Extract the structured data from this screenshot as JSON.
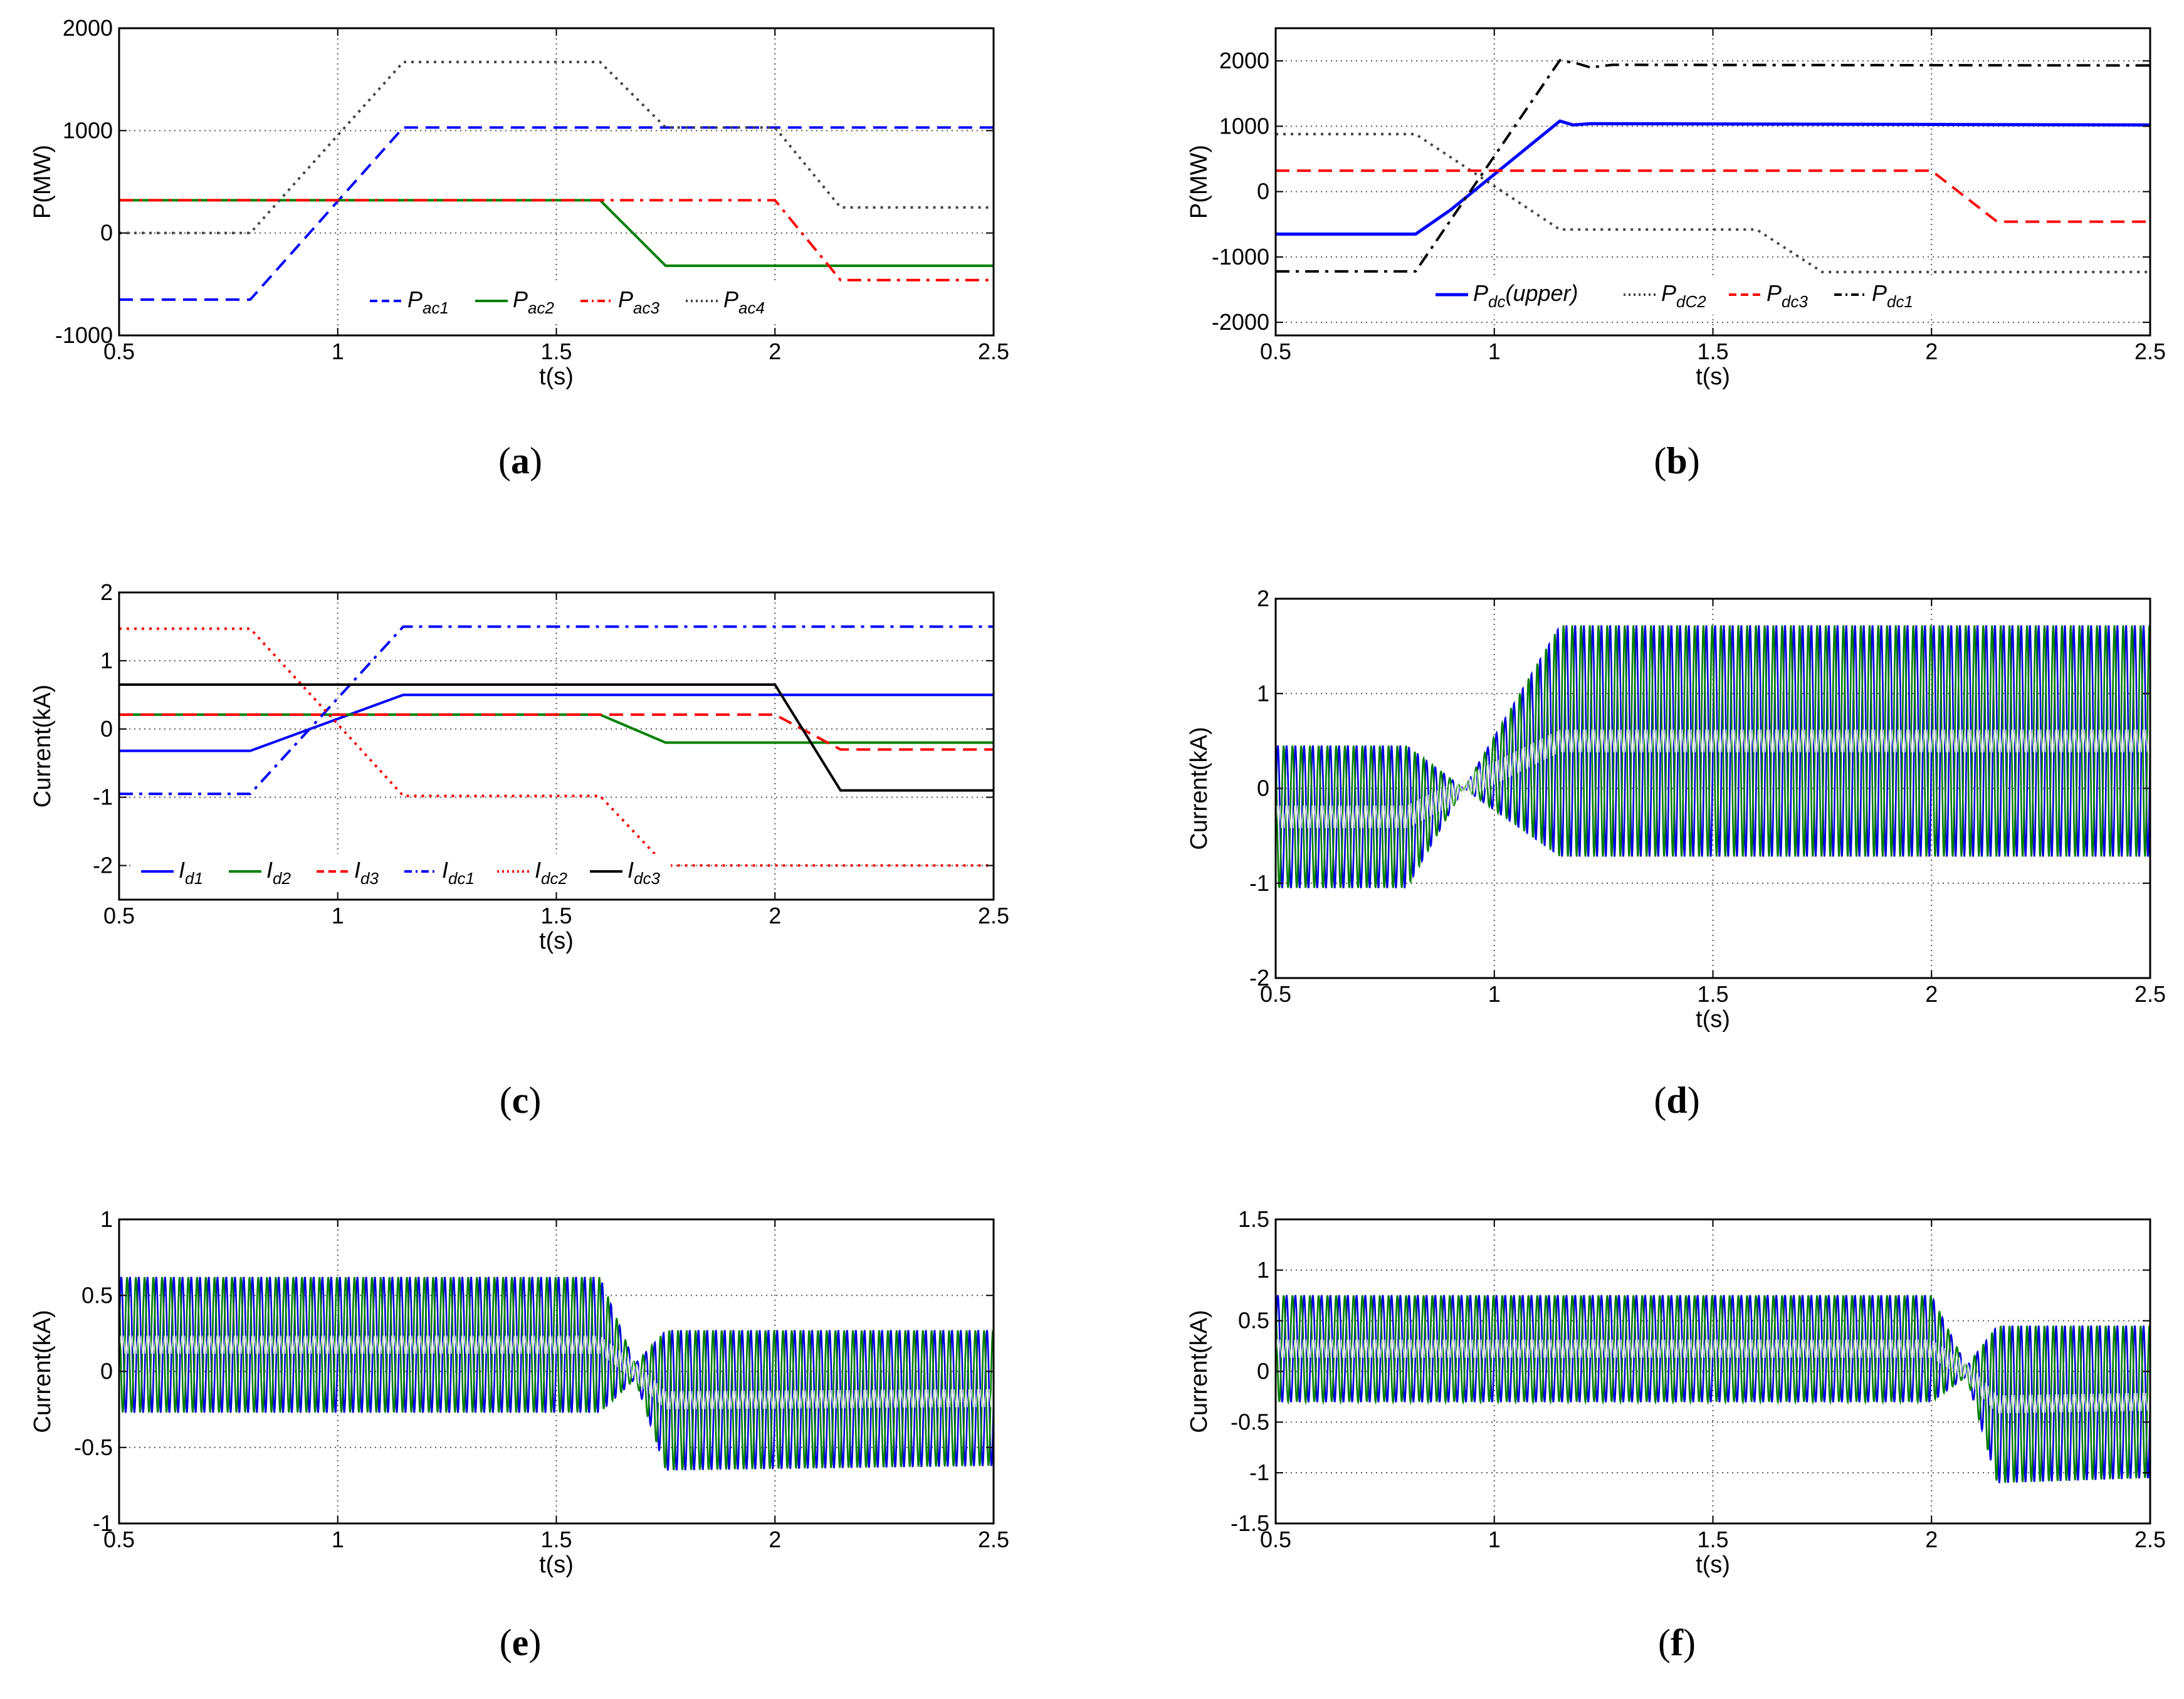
{
  "figure": {
    "panels": [
      "a",
      "b",
      "c",
      "d",
      "e",
      "f"
    ]
  },
  "chart_data": [
    {
      "id": "a",
      "caption_letter": "a",
      "type": "line",
      "xlabel": "t(s)",
      "ylabel": "P(MW)",
      "xlim": [
        0.5,
        2.5
      ],
      "ylim": [
        -1000,
        2000
      ],
      "xticks": [
        0.5,
        1,
        1.5,
        2,
        2.5
      ],
      "xtick_labels": [
        "0.5",
        "1",
        "1.5",
        "2",
        "2.5"
      ],
      "yticks": [
        -1000,
        0,
        1000,
        2000
      ],
      "ytick_labels": [
        "-1000",
        "0",
        "1000",
        "2000"
      ],
      "grid": true,
      "legend_position": "bottom-center",
      "series": [
        {
          "name": "ac1",
          "label_main": "P",
          "label_sub": "ac1",
          "color": "#0000ff",
          "dash": "long-dash",
          "x": [
            0.5,
            0.8,
            1.15,
            2.5
          ],
          "y": [
            -650,
            -650,
            1030,
            1030
          ]
        },
        {
          "name": "ac2",
          "label_main": "P",
          "label_sub": "ac2",
          "color": "#008000",
          "dash": "solid",
          "x": [
            0.5,
            1.6,
            1.75,
            2.5
          ],
          "y": [
            320,
            320,
            -320,
            -320
          ]
        },
        {
          "name": "ac3",
          "label_main": "P",
          "label_sub": "ac3",
          "color": "#ff0000",
          "dash": "dash-dot",
          "x": [
            0.5,
            2.0,
            2.15,
            2.5
          ],
          "y": [
            320,
            320,
            -460,
            -460
          ]
        },
        {
          "name": "ac4",
          "label_main": "P",
          "label_sub": "ac4",
          "color": "#444444",
          "dash": "dotted",
          "x": [
            0.5,
            0.8,
            1.15,
            1.6,
            1.75,
            2.0,
            2.15,
            2.5
          ],
          "y": [
            0,
            0,
            1670,
            1670,
            1030,
            1030,
            250,
            250
          ]
        }
      ]
    },
    {
      "id": "b",
      "caption_letter": "b",
      "type": "line",
      "xlabel": "t(s)",
      "ylabel": "P(MW)",
      "xlim": [
        0.5,
        2.5
      ],
      "ylim": [
        -2200,
        2500
      ],
      "xticks": [
        0.5,
        1,
        1.5,
        2,
        2.5
      ],
      "xtick_labels": [
        "0.5",
        "1",
        "1.5",
        "2",
        "2.5"
      ],
      "yticks": [
        -2000,
        -1000,
        0,
        1000,
        2000
      ],
      "ytick_labels": [
        "-2000",
        "-1000",
        "0",
        "1000",
        "2000"
      ],
      "grid": true,
      "legend_position": "bottom-center",
      "series": [
        {
          "name": "dc_upper",
          "label_main": "P",
          "label_sub": "dc",
          "label_suffix": "(upper)",
          "color": "#0000ff",
          "dash": "solid",
          "width": 5,
          "x": [
            0.5,
            0.82,
            0.9,
            1.15,
            1.18,
            1.22,
            2.5
          ],
          "y": [
            -650,
            -650,
            -280,
            1080,
            1020,
            1040,
            1020
          ]
        },
        {
          "name": "dC2",
          "label_main": "P",
          "label_sub": "dC2",
          "color": "#444444",
          "dash": "dotted",
          "x": [
            0.5,
            0.82,
            1.15,
            1.6,
            1.75,
            2.5
          ],
          "y": [
            880,
            880,
            -580,
            -580,
            -1230,
            -1230
          ]
        },
        {
          "name": "dc3",
          "label_main": "P",
          "label_sub": "dc3",
          "color": "#ff0000",
          "dash": "long-dash",
          "x": [
            0.5,
            2.0,
            2.15,
            2.5
          ],
          "y": [
            320,
            320,
            -460,
            -460
          ]
        },
        {
          "name": "dc1",
          "label_main": "P",
          "label_sub": "dc1",
          "color": "#000000",
          "dash": "dash-dot",
          "x": [
            0.5,
            0.82,
            1.15,
            1.19,
            1.22,
            1.27,
            2.5
          ],
          "y": [
            -1220,
            -1220,
            2010,
            1960,
            1900,
            1940,
            1930
          ]
        }
      ]
    },
    {
      "id": "c",
      "caption_letter": "c",
      "type": "line",
      "xlabel": "t(s)",
      "ylabel": "Current(kA)",
      "xlim": [
        0.5,
        2.5
      ],
      "ylim": [
        -2.5,
        2
      ],
      "xticks": [
        0.5,
        1,
        1.5,
        2,
        2.5
      ],
      "xtick_labels": [
        "0.5",
        "1",
        "1.5",
        "2",
        "2.5"
      ],
      "yticks": [
        -2,
        -1,
        0,
        1,
        2
      ],
      "ytick_labels": [
        "-2",
        "-1",
        "0",
        "1",
        "2"
      ],
      "grid": true,
      "legend_position": "bottom-left",
      "series": [
        {
          "name": "d1",
          "label_main": "I",
          "label_sub": "d1",
          "color": "#0000ff",
          "dash": "solid",
          "x": [
            0.5,
            0.8,
            1.15,
            2.5
          ],
          "y": [
            -0.32,
            -0.32,
            0.5,
            0.5
          ]
        },
        {
          "name": "d2",
          "label_main": "I",
          "label_sub": "d2",
          "color": "#008000",
          "dash": "solid",
          "x": [
            0.5,
            1.6,
            1.75,
            2.5
          ],
          "y": [
            0.21,
            0.21,
            -0.2,
            -0.2
          ]
        },
        {
          "name": "d3",
          "label_main": "I",
          "label_sub": "d3",
          "color": "#ff0000",
          "dash": "long-dash",
          "x": [
            0.5,
            2.0,
            2.15,
            2.5
          ],
          "y": [
            0.21,
            0.21,
            -0.3,
            -0.3
          ]
        },
        {
          "name": "dc1",
          "label_main": "I",
          "label_sub": "dc1",
          "color": "#0000ff",
          "dash": "dash-dot",
          "x": [
            0.5,
            0.8,
            1.15,
            2.5
          ],
          "y": [
            -0.95,
            -0.95,
            1.5,
            1.5
          ]
        },
        {
          "name": "dc2",
          "label_main": "I",
          "label_sub": "dc2",
          "color": "#ff0000",
          "dash": "dotted",
          "x": [
            0.5,
            0.8,
            1.15,
            1.6,
            1.75,
            2.5
          ],
          "y": [
            1.47,
            1.47,
            -0.98,
            -0.98,
            -2.0,
            -2.0
          ]
        },
        {
          "name": "dc3",
          "label_main": "I",
          "label_sub": "dc3",
          "color": "#000000",
          "dash": "solid",
          "x": [
            0.5,
            2.0,
            2.15,
            2.5
          ],
          "y": [
            0.65,
            0.65,
            -0.9,
            -0.9
          ]
        }
      ]
    },
    {
      "id": "d",
      "caption_letter": "d",
      "type": "line",
      "xlabel": "t(s)",
      "ylabel": "Current(kA)",
      "xlim": [
        0.5,
        2.5
      ],
      "ylim": [
        -2,
        2
      ],
      "xticks": [
        0.5,
        1,
        1.5,
        2,
        2.5
      ],
      "xtick_labels": [
        "0.5",
        "1",
        "1.5",
        "2",
        "2.5"
      ],
      "yticks": [
        -2,
        -1,
        0,
        1,
        2
      ],
      "ytick_labels": [
        "-2",
        "-1",
        "0",
        "1",
        "2"
      ],
      "grid": true,
      "oscillation": {
        "description": "AC phase current envelopes",
        "colors": [
          "#0000dd",
          "#008000"
        ],
        "center_line_color": "#e8f2e0",
        "t": [
          0.5,
          0.8,
          0.93,
          1.15,
          2.5
        ],
        "upper": [
          0.45,
          0.45,
          0.0,
          1.72,
          1.72
        ],
        "lower": [
          -1.05,
          -1.05,
          0.0,
          -0.72,
          -0.72
        ]
      }
    },
    {
      "id": "e",
      "caption_letter": "e",
      "type": "line",
      "xlabel": "t(s)",
      "ylabel": "Current(kA)",
      "xlim": [
        0.5,
        2.5
      ],
      "ylim": [
        -1,
        1
      ],
      "xticks": [
        0.5,
        1,
        1.5,
        2,
        2.5
      ],
      "xtick_labels": [
        "0.5",
        "1",
        "1.5",
        "2",
        "2.5"
      ],
      "yticks": [
        -1,
        -0.5,
        0,
        0.5,
        1
      ],
      "ytick_labels": [
        "-1",
        "-0.5",
        "0",
        "0.5",
        "1"
      ],
      "grid": true,
      "oscillation": {
        "description": "AC phase current envelopes",
        "colors": [
          "#0000dd",
          "#008000"
        ],
        "center_line_color": "#e8f2e0",
        "t": [
          0.5,
          1.6,
          1.68,
          1.75,
          2.5
        ],
        "upper": [
          0.62,
          0.62,
          0.05,
          0.27,
          0.27
        ],
        "lower": [
          -0.27,
          -0.27,
          -0.05,
          -0.65,
          -0.62
        ]
      }
    },
    {
      "id": "f",
      "caption_letter": "f",
      "type": "line",
      "xlabel": "t(s)",
      "ylabel": "Current(kA)",
      "xlim": [
        0.5,
        2.5
      ],
      "ylim": [
        -1.5,
        1.5
      ],
      "xticks": [
        0.5,
        1,
        1.5,
        2,
        2.5
      ],
      "xtick_labels": [
        "0.5",
        "1",
        "1.5",
        "2",
        "2.5"
      ],
      "yticks": [
        -1.5,
        -1,
        -0.5,
        0,
        0.5,
        1,
        1.5
      ],
      "ytick_labels": [
        "-1.5",
        "-1",
        "-0.5",
        "0",
        "0.5",
        "1",
        "1.5"
      ],
      "grid": true,
      "oscillation": {
        "description": "AC phase current envelopes",
        "colors": [
          "#0000dd",
          "#008000"
        ],
        "center_line_color": "#e8f2e0",
        "t": [
          0.5,
          2.0,
          2.08,
          2.15,
          2.5
        ],
        "upper": [
          0.75,
          0.75,
          0.05,
          0.45,
          0.45
        ],
        "lower": [
          -0.3,
          -0.3,
          -0.05,
          -1.1,
          -1.05
        ]
      }
    }
  ]
}
